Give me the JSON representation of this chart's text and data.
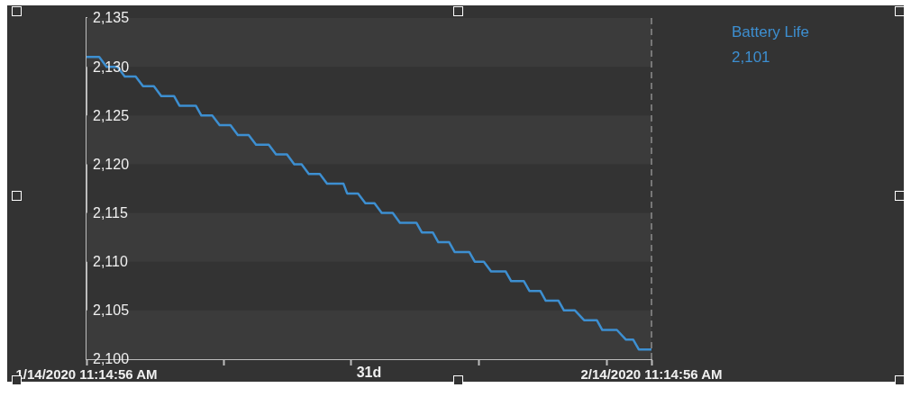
{
  "chart_data": {
    "type": "line",
    "x": [
      "2020-01-14T11:15",
      "2020-01-15T04:00",
      "2020-01-15T13:40",
      "2020-01-16T04:00",
      "2020-01-16T13:40",
      "2020-01-17T04:00",
      "2020-01-17T13:40",
      "2020-01-18T04:00",
      "2020-01-18T13:40",
      "2020-01-19T06:30",
      "2020-01-19T13:40",
      "2020-01-20T11:15",
      "2020-01-20T18:30",
      "2020-01-21T08:50",
      "2020-01-21T18:30",
      "2020-01-22T08:50",
      "2020-01-22T18:30",
      "2020-01-23T08:50",
      "2020-01-23T18:30",
      "2020-01-24T11:15",
      "2020-01-24T20:50",
      "2020-01-25T11:15",
      "2020-01-25T20:50",
      "2020-01-26T06:30",
      "2020-01-26T16:00",
      "2020-01-27T06:30",
      "2020-01-27T16:00",
      "2020-01-28T13:40",
      "2020-01-28T18:30",
      "2020-01-29T08:50",
      "2020-01-29T18:30",
      "2020-01-30T06:30",
      "2020-01-30T16:00",
      "2020-01-31T06:30",
      "2020-01-31T16:00",
      "2020-02-01T13:40",
      "2020-02-01T20:50",
      "2020-02-02T11:15",
      "2020-02-02T18:30",
      "2020-02-03T08:50",
      "2020-02-03T16:00",
      "2020-02-04T11:15",
      "2020-02-04T18:30",
      "2020-02-05T06:30",
      "2020-02-05T16:00",
      "2020-02-06T11:15",
      "2020-02-06T18:30",
      "2020-02-07T11:15",
      "2020-02-07T18:30",
      "2020-02-08T08:50",
      "2020-02-08T16:00",
      "2020-02-09T08:50",
      "2020-02-09T16:00",
      "2020-02-10T06:30",
      "2020-02-10T18:30",
      "2020-02-11T11:15",
      "2020-02-11T18:30",
      "2020-02-12T13:40",
      "2020-02-13T01:40",
      "2020-02-13T11:15",
      "2020-02-13T18:30",
      "2020-02-14T11:15"
    ],
    "series": [
      {
        "name": "Battery Life",
        "color": "#3d8fd1",
        "values": [
          2131,
          2131,
          2130,
          2130,
          2129,
          2129,
          2128,
          2128,
          2127,
          2127,
          2126,
          2126,
          2125,
          2125,
          2124,
          2124,
          2123,
          2123,
          2122,
          2122,
          2121,
          2121,
          2120,
          2120,
          2119,
          2119,
          2118,
          2118,
          2117,
          2117,
          2116,
          2116,
          2115,
          2115,
          2114,
          2114,
          2113,
          2113,
          2112,
          2112,
          2111,
          2111,
          2110,
          2110,
          2109,
          2109,
          2108,
          2108,
          2107,
          2107,
          2106,
          2106,
          2105,
          2105,
          2104,
          2104,
          2103,
          2103,
          2102,
          2102,
          2101,
          2101
        ]
      }
    ],
    "xlim": [
      "2020-01-14T11:15",
      "2020-02-14T11:15"
    ],
    "xticks": [
      {
        "value": "2020-01-14T11:15",
        "label": "1/14/2020 11:14:56 AM"
      },
      {
        "value": "2020-01-22",
        "label": null
      },
      {
        "value": "2020-01-29",
        "label": null
      },
      {
        "value": "2020-02-05",
        "label": null
      },
      {
        "value": "2020-02-12",
        "label": null
      },
      {
        "value": "2020-02-14T11:15",
        "label": "2/14/2020 11:14:56 AM"
      }
    ],
    "ylim": [
      2100,
      2135
    ],
    "yticks": [
      {
        "value": 2100,
        "label": "2,100"
      },
      {
        "value": 2105,
        "label": "2,105"
      },
      {
        "value": 2110,
        "label": "2,110"
      },
      {
        "value": 2115,
        "label": "2,115"
      },
      {
        "value": 2120,
        "label": "2,120"
      },
      {
        "value": 2125,
        "label": "2,125"
      },
      {
        "value": 2130,
        "label": "2,130"
      },
      {
        "value": 2135,
        "label": "2,135"
      }
    ],
    "xlabel": "31d",
    "bands": [
      {
        "axis": "y",
        "from": 2100,
        "to": 2105,
        "label": null,
        "color": "#3b3b3b"
      },
      {
        "axis": "y",
        "from": 2110,
        "to": 2115,
        "label": null,
        "color": "#3b3b3b"
      },
      {
        "axis": "y",
        "from": 2120,
        "to": 2125,
        "label": null,
        "color": "#3b3b3b"
      },
      {
        "axis": "y",
        "from": 2130,
        "to": 2135,
        "label": null,
        "color": "#3b3b3b"
      }
    ],
    "legend": "right",
    "annotations": [
      "2,101"
    ],
    "ref_lines": [
      {
        "axis": "x",
        "value": "2020-02-14T11:15",
        "label": null,
        "color": "#777777",
        "line_style": "dashed"
      }
    ],
    "marker": "none",
    "line_style": "solid"
  }
}
